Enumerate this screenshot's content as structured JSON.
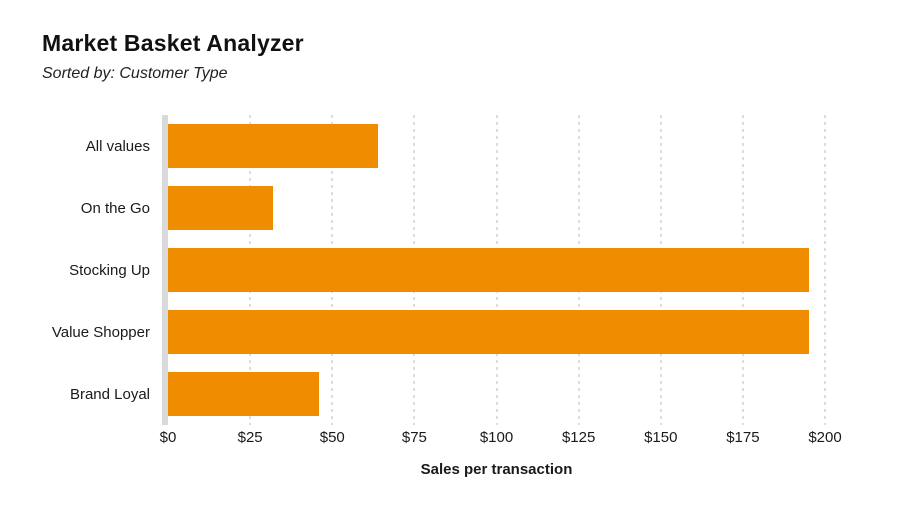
{
  "header": {
    "title": "Market Basket Analyzer",
    "subtitle": "Sorted by: Customer Type"
  },
  "chart_data": {
    "type": "bar",
    "orientation": "horizontal",
    "title": "Market Basket Analyzer",
    "subtitle": "Sorted by: Customer Type",
    "categories": [
      "All values",
      "On the Go",
      "Stocking Up",
      "Value Shopper",
      "Brand Loyal"
    ],
    "values": [
      64,
      32,
      195,
      195,
      46
    ],
    "xlabel": "Sales per transaction",
    "ylabel": "",
    "xlim": [
      0,
      200
    ],
    "xticks": [
      0,
      25,
      50,
      75,
      100,
      125,
      150,
      175,
      200
    ],
    "tick_prefix": "$",
    "grid": "vertical-dashed",
    "legend": "none",
    "colors": {
      "bar": "#F08C00",
      "axis_line": "#D9D9D9",
      "gridline": "#DCDCDC",
      "text": "#1A1A1A",
      "background": "#FFFFFF"
    }
  }
}
